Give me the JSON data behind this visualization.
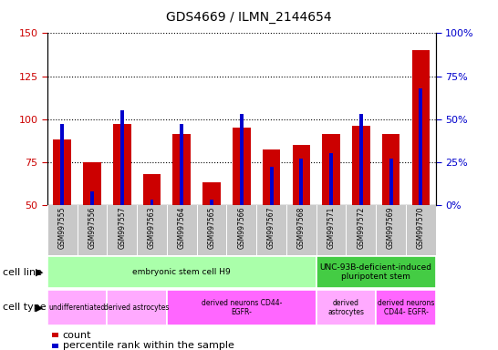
{
  "title": "GDS4669 / ILMN_2144654",
  "samples": [
    "GSM997555",
    "GSM997556",
    "GSM997557",
    "GSM997563",
    "GSM997564",
    "GSM997565",
    "GSM997566",
    "GSM997567",
    "GSM997568",
    "GSM997571",
    "GSM997572",
    "GSM997569",
    "GSM997570"
  ],
  "count_values": [
    88,
    75,
    97,
    68,
    91,
    63,
    95,
    82,
    85,
    91,
    96,
    91,
    140
  ],
  "percentile_values": [
    47,
    8,
    55,
    3,
    47,
    3,
    53,
    22,
    27,
    30,
    53,
    27,
    68
  ],
  "ylim_left": [
    50,
    150
  ],
  "ylim_right": [
    0,
    100
  ],
  "yticks_left": [
    50,
    75,
    100,
    125,
    150
  ],
  "yticks_right": [
    0,
    25,
    50,
    75,
    100
  ],
  "bar_color": "#cc0000",
  "percentile_color": "#0000cc",
  "bar_width": 0.6,
  "percentile_bar_width": 0.12,
  "cell_line_groups": [
    {
      "label": "embryonic stem cell H9",
      "start": 0,
      "end": 9,
      "color": "#aaffaa"
    },
    {
      "label": "UNC-93B-deficient-induced\npluripotent stem",
      "start": 9,
      "end": 13,
      "color": "#44cc44"
    }
  ],
  "cell_type_groups": [
    {
      "label": "undifferentiated",
      "start": 0,
      "end": 2,
      "color": "#ffaaff"
    },
    {
      "label": "derived astrocytes",
      "start": 2,
      "end": 4,
      "color": "#ffaaff"
    },
    {
      "label": "derived neurons CD44-\nEGFR-",
      "start": 4,
      "end": 9,
      "color": "#ff66ff"
    },
    {
      "label": "derived\nastrocytes",
      "start": 9,
      "end": 11,
      "color": "#ffaaff"
    },
    {
      "label": "derived neurons\nCD44- EGFR-",
      "start": 11,
      "end": 13,
      "color": "#ff66ff"
    }
  ],
  "grid_color": "#000000",
  "grid_linestyle": ":",
  "grid_linewidth": 0.8,
  "tick_label_color_left": "#cc0000",
  "tick_label_color_right": "#0000cc",
  "legend_count_label": "count",
  "legend_percentile_label": "percentile rank within the sample",
  "cell_line_label": "cell line",
  "cell_type_label": "cell type",
  "sample_label_bg": "#c8c8c8",
  "spine_color": "#000000"
}
